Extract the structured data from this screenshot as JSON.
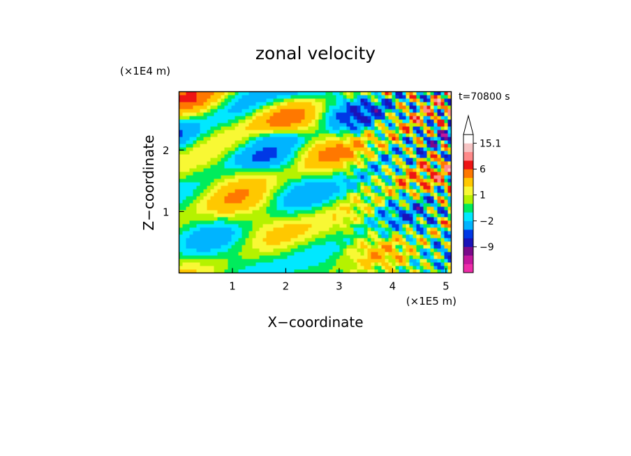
{
  "chart_data": {
    "type": "heatmap",
    "title": "zonal velocity",
    "xlabel": "X−coordinate",
    "ylabel": "Z−coordinate",
    "x_unit": "(×1E5 m)",
    "y_unit": "(×1E4 m)",
    "time_label": "t=70800 s",
    "xlim": [
      0,
      5.1
    ],
    "ylim": [
      0,
      2.95
    ],
    "x_ticks": [
      1,
      2,
      3,
      4,
      5
    ],
    "y_ticks": [
      1,
      2
    ],
    "colorbar": {
      "levels": [
        -15,
        -12,
        -9,
        -6,
        -4,
        -2,
        -1,
        0,
        1,
        2,
        4,
        6,
        9,
        12,
        15.1
      ],
      "colors": [
        "#ee2ca9",
        "#c3179d",
        "#7a0a8a",
        "#1a12b8",
        "#0038e6",
        "#00b4ff",
        "#00e8ff",
        "#00ec5c",
        "#b5f200",
        "#f8f834",
        "#ffc800",
        "#ff7800",
        "#ee1414",
        "#ff8a8a",
        "#f6c4c4",
        "#ffffff"
      ],
      "labels": [
        "15.1",
        "6",
        "1",
        "−2",
        "−9"
      ],
      "label_values": [
        15.1,
        6,
        1,
        -2,
        -9
      ],
      "extend": "max"
    }
  }
}
